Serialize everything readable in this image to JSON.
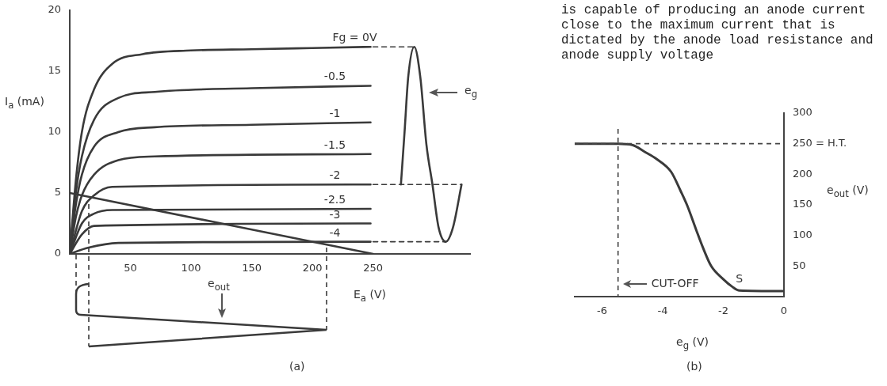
{
  "chart_data": [
    {
      "type": "line",
      "xlabel": "E$_{a}$ (V)",
      "ylabel": "I$_{a}$ (mA)",
      "xlim": [
        0,
        330
      ],
      "ylim": [
        0,
        20
      ],
      "xticks": [
        50,
        100,
        150,
        200,
        250
      ],
      "yticks": [
        0,
        5,
        10,
        15,
        20
      ],
      "grid": false,
      "legend": false,
      "marker": "none",
      "line_style": "solid",
      "series": [
        {
          "name": "Fg = 0V",
          "color": "#3a3a3a",
          "x": [
            0,
            5,
            10,
            20,
            35,
            60,
            100,
            150,
            200,
            248
          ],
          "values": [
            0,
            6,
            10,
            13.5,
            15.6,
            16.4,
            16.7,
            16.8,
            16.9,
            17
          ]
        },
        {
          "name": "-0.5",
          "color": "#3a3a3a",
          "x": [
            0,
            5,
            10,
            20,
            40,
            70,
            150,
            248
          ],
          "values": [
            0,
            5,
            8,
            11,
            12.8,
            13.3,
            13.6,
            13.8
          ]
        },
        {
          "name": "-1",
          "color": "#3a3a3a",
          "x": [
            0,
            5,
            10,
            20,
            40,
            70,
            150,
            248
          ],
          "values": [
            0,
            4,
            6.5,
            8.8,
            10,
            10.4,
            10.6,
            10.8
          ]
        },
        {
          "name": "-1.5",
          "color": "#3a3a3a",
          "x": [
            0,
            5,
            10,
            20,
            40,
            70,
            248
          ],
          "values": [
            0,
            3,
            4.8,
            6.5,
            7.7,
            8,
            8.2
          ]
        },
        {
          "name": "-2",
          "color": "#3a3a3a",
          "x": [
            0,
            10,
            20,
            35,
            248
          ],
          "values": [
            0,
            3.5,
            4.8,
            5.5,
            5.7
          ]
        },
        {
          "name": "-2.5",
          "color": "#3a3a3a",
          "x": [
            0,
            10,
            20,
            35,
            248
          ],
          "values": [
            0,
            2.5,
            3.3,
            3.6,
            3.7
          ]
        },
        {
          "name": "-3",
          "color": "#3a3a3a",
          "x": [
            0,
            10,
            20,
            248
          ],
          "values": [
            0,
            1.6,
            2.3,
            2.5
          ]
        },
        {
          "name": "-4",
          "color": "#3a3a3a",
          "x": [
            0,
            15,
            40,
            248
          ],
          "values": [
            0,
            0.5,
            0.9,
            1
          ]
        },
        {
          "color": "#3a3a3a",
          "x": [
            0,
            250
          ],
          "values": [
            5,
            0
          ]
        },
        {
          "color": "#3a3a3a",
          "x": [
            273,
            276,
            279,
            284,
            289,
            294,
            299,
            304,
            310,
            316,
            323
          ],
          "values": [
            5.7,
            10,
            14.5,
            17,
            14.5,
            9,
            5.7,
            2.2,
            1,
            2.2,
            5.7
          ]
        },
        {
          "color": "#3a3a3a",
          "line_style": "dashed",
          "x": [
            250,
            284
          ],
          "values": [
            17,
            17
          ]
        },
        {
          "color": "#3a3a3a",
          "line_style": "dashed",
          "x": [
            250,
            323
          ],
          "values": [
            5.7,
            5.7
          ]
        },
        {
          "color": "#3a3a3a",
          "line_style": "dashed",
          "x": [
            250,
            310
          ],
          "values": [
            1,
            1
          ]
        }
      ],
      "annotations": [
        "e$_{g}$",
        "e$_{out}$",
        "(a)"
      ]
    },
    {
      "type": "line",
      "xlabel": "e$_{g}$ (V)",
      "ylabel": "e$_{out}$ (V)",
      "xlim": [
        -6.9,
        0
      ],
      "ylim": [
        0,
        300
      ],
      "xticks": [
        -6,
        -4,
        -2,
        0
      ],
      "yticks": [
        50,
        100,
        150,
        200,
        {
          "value": 250,
          "label": "250 = H.T."
        },
        300
      ],
      "grid": false,
      "legend": false,
      "marker": "none",
      "line_style": "solid",
      "series": [
        {
          "color": "#3a3a3a",
          "x": [
            -6.9,
            -5.47,
            -5.0,
            -4.6,
            -4.2,
            -3.72,
            -3.4,
            -3.19,
            -2.9,
            -2.67,
            -2.4,
            -1.99,
            -1.7,
            -1.47,
            0
          ],
          "values": [
            250,
            250,
            248,
            237,
            225,
            204,
            172,
            149,
            110,
            80,
            50,
            28,
            16,
            10,
            9
          ]
        }
      ],
      "ref_lines": [
        {
          "axis": "y",
          "value": 250,
          "line_style": "dashed"
        },
        {
          "axis": "x",
          "value": -5.47,
          "label": "CUT-OFF",
          "line_style": "dashed"
        }
      ],
      "annotations": [
        "is capable of producing an anode current close to the maximum current that is dictated by the anode load resistance and anode supply voltage",
        {
          "text": "S",
          "x": -1.47,
          "y": 10
        },
        "(b)"
      ]
    }
  ]
}
